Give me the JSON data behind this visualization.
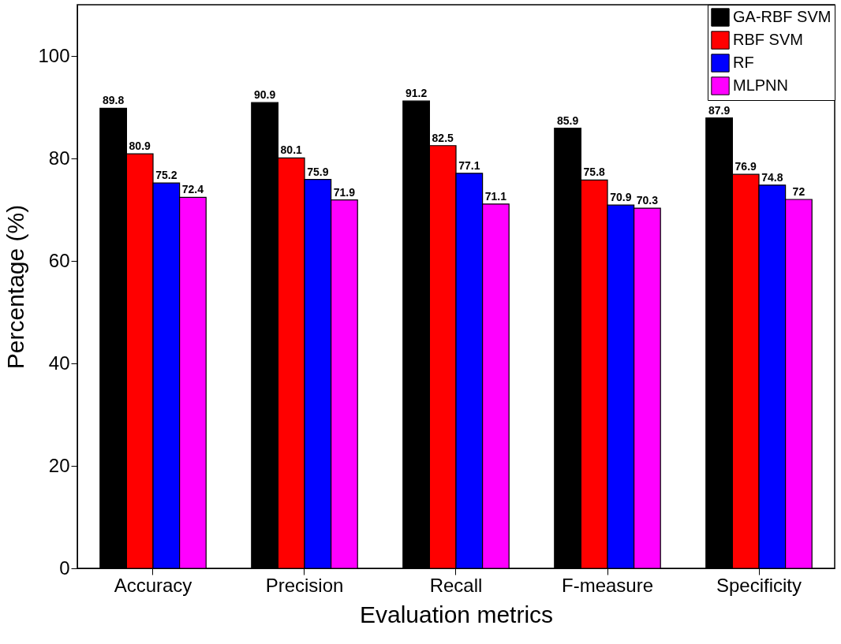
{
  "chart_data": {
    "type": "bar",
    "xlabel": "Evaluation metrics",
    "ylabel": "Percentage (%)",
    "categories": [
      "Accuracy",
      "Precision",
      "Recall",
      "F-measure",
      "Specificity"
    ],
    "series": [
      {
        "name": "GA-RBF SVM",
        "color": "#000000",
        "values": [
          89.8,
          90.9,
          91.2,
          85.9,
          87.9
        ]
      },
      {
        "name": "RBF SVM",
        "color": "#ff0000",
        "values": [
          80.9,
          80.1,
          82.5,
          75.8,
          76.9
        ]
      },
      {
        "name": "RF",
        "color": "#0000ff",
        "values": [
          75.2,
          75.9,
          77.1,
          70.9,
          74.8
        ]
      },
      {
        "name": "MLPNN",
        "color": "#ff00ff",
        "values": [
          72.4,
          71.9,
          71.1,
          70.3,
          72
        ]
      }
    ],
    "ylim": [
      0,
      110
    ],
    "yticks": [
      0,
      20,
      40,
      60,
      80,
      100
    ],
    "data_labels": true,
    "legend": "top right",
    "grid": false
  }
}
